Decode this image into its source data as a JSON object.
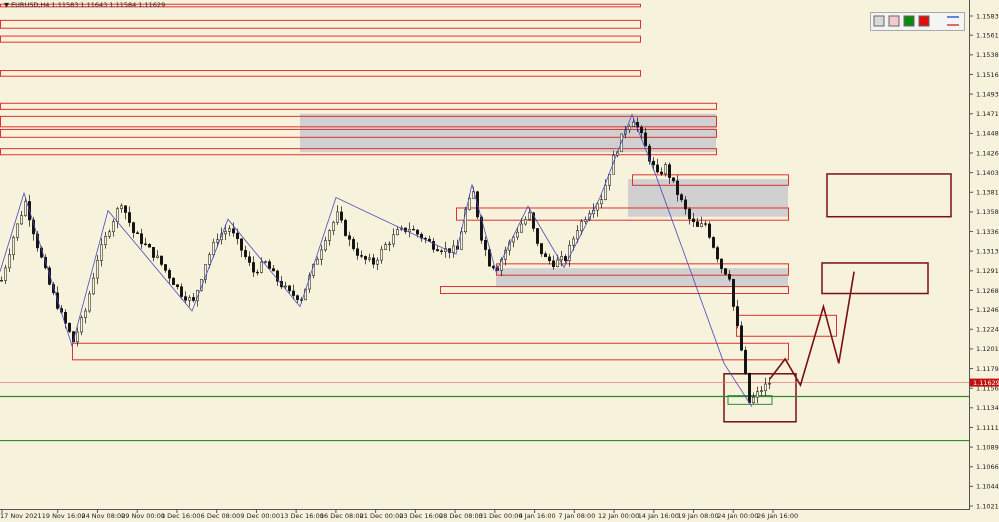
{
  "header": {
    "symbol_line": "▼ EURUSD,H4 1.11583 1.11643 1.11584 1.11629"
  },
  "toolbar": {
    "swatches": [
      {
        "name": "light-gray-swatch",
        "color": "#d9d9d9"
      },
      {
        "name": "pink-swatch",
        "color": "#f4c9d0"
      },
      {
        "name": "green-swatch",
        "color": "#0a8a0a"
      },
      {
        "name": "red-swatch",
        "color": "#e01010"
      }
    ]
  },
  "colors": {
    "background": "#f6f2dc",
    "candle": "#111111",
    "zone_red": "#e23030",
    "zone_dark": "#7a1010",
    "zone_fill": "#d0d0d0",
    "zigzag": "#4a4ab8",
    "green_line": "#2e8b2e",
    "price_line": "#e08080",
    "price_tag": "#c01010"
  },
  "chart_data": {
    "type": "candlestick",
    "symbol": "EURUSD",
    "timeframe": "H4",
    "ohlc": {
      "open": 1.11583,
      "high": 1.11643,
      "low": 1.11584,
      "close": 1.11629
    },
    "current_price_label": "1.11629",
    "y_ticks": [
      "1.15830",
      "1.15610",
      "1.15385",
      "1.15160",
      "1.14935",
      "1.14710",
      "1.14485",
      "1.14260",
      "1.14035",
      "1.13810",
      "1.13585",
      "1.13360",
      "1.13135",
      "1.12910",
      "1.12685",
      "1.12465",
      "1.12240",
      "1.12015",
      "1.11790",
      "1.11565",
      "1.11340",
      "1.11115",
      "1.10890",
      "1.10665",
      "1.10440",
      "1.10215"
    ],
    "x_ticks": [
      "17 Nov 2021",
      "19 Nov 16:00",
      "24 Nov 08:00",
      "29 Nov 00:00",
      "1 Dec 16:00",
      "6 Dec 08:00",
      "9 Dec 00:00",
      "13 Dec 16:00",
      "16 Dec 08:00",
      "21 Dec 00:00",
      "23 Dec 16:00",
      "28 Dec 08:00",
      "31 Dec 00:00",
      "4 Jan 16:00",
      "7 Jan 08:00",
      "12 Jan 00:00",
      "14 Jan 16:00",
      "19 Jan 08:00",
      "24 Jan 00:00",
      "26 Jan 16:00"
    ],
    "zigzag": [
      [
        0,
        1.129
      ],
      [
        6,
        1.138
      ],
      [
        18,
        1.1205
      ],
      [
        27,
        1.136
      ],
      [
        48,
        1.1245
      ],
      [
        57,
        1.135
      ],
      [
        75,
        1.125
      ],
      [
        84,
        1.1375
      ],
      [
        114,
        1.131
      ],
      [
        118,
        1.139
      ],
      [
        124,
        1.129
      ],
      [
        132,
        1.1365
      ],
      [
        141,
        1.1295
      ],
      [
        150,
        1.1375
      ],
      [
        158,
        1.147
      ],
      [
        164,
        1.14
      ],
      [
        181,
        1.1185
      ],
      [
        188,
        1.1135
      ]
    ],
    "close_path": [
      [
        0,
        1.128
      ],
      [
        3,
        1.133
      ],
      [
        6,
        1.137
      ],
      [
        9,
        1.132
      ],
      [
        12,
        1.1275
      ],
      [
        15,
        1.124
      ],
      [
        18,
        1.121
      ],
      [
        21,
        1.1245
      ],
      [
        24,
        1.1305
      ],
      [
        27,
        1.134
      ],
      [
        30,
        1.137
      ],
      [
        33,
        1.1335
      ],
      [
        36,
        1.132
      ],
      [
        39,
        1.1305
      ],
      [
        42,
        1.1285
      ],
      [
        45,
        1.1265
      ],
      [
        48,
        1.1255
      ],
      [
        51,
        1.13
      ],
      [
        54,
        1.133
      ],
      [
        57,
        1.134
      ],
      [
        60,
        1.1315
      ],
      [
        63,
        1.129
      ],
      [
        66,
        1.13
      ],
      [
        69,
        1.128
      ],
      [
        72,
        1.1265
      ],
      [
        75,
        1.126
      ],
      [
        78,
        1.1295
      ],
      [
        81,
        1.133
      ],
      [
        84,
        1.1355
      ],
      [
        87,
        1.1325
      ],
      [
        90,
        1.1305
      ],
      [
        93,
        1.13
      ],
      [
        96,
        1.132
      ],
      [
        99,
        1.1335
      ],
      [
        102,
        1.134
      ],
      [
        105,
        1.133
      ],
      [
        108,
        1.132
      ],
      [
        111,
        1.1315
      ],
      [
        114,
        1.1315
      ],
      [
        116,
        1.136
      ],
      [
        118,
        1.138
      ],
      [
        120,
        1.133
      ],
      [
        122,
        1.13
      ],
      [
        124,
        1.1295
      ],
      [
        126,
        1.1315
      ],
      [
        128,
        1.133
      ],
      [
        130,
        1.1345
      ],
      [
        132,
        1.1355
      ],
      [
        134,
        1.132
      ],
      [
        136,
        1.1305
      ],
      [
        138,
        1.13
      ],
      [
        141,
        1.1305
      ],
      [
        144,
        1.134
      ],
      [
        147,
        1.136
      ],
      [
        150,
        1.1375
      ],
      [
        153,
        1.142
      ],
      [
        156,
        1.1455
      ],
      [
        158,
        1.1465
      ],
      [
        160,
        1.1445
      ],
      [
        162,
        1.142
      ],
      [
        164,
        1.14
      ],
      [
        166,
        1.141
      ],
      [
        168,
        1.139
      ],
      [
        170,
        1.137
      ],
      [
        172,
        1.135
      ],
      [
        174,
        1.134
      ],
      [
        176,
        1.1345
      ],
      [
        178,
        1.132
      ],
      [
        180,
        1.1295
      ],
      [
        182,
        1.1285
      ],
      [
        183,
        1.125
      ],
      [
        185,
        1.12
      ],
      [
        187,
        1.114
      ],
      [
        189,
        1.115
      ],
      [
        190,
        1.1155
      ],
      [
        192,
        1.1163
      ]
    ],
    "zones": [
      {
        "type": "resistance",
        "y1": 1.15965,
        "y2": 1.15935,
        "x_end": 160
      },
      {
        "type": "resistance",
        "y1": 1.1578,
        "y2": 1.1569,
        "x_end": 160
      },
      {
        "type": "resistance",
        "y1": 1.156,
        "y2": 1.1553,
        "x_end": 160
      },
      {
        "type": "resistance",
        "y1": 1.15205,
        "y2": 1.1514,
        "x_end": 160
      },
      {
        "type": "resistance",
        "y1": 1.1483,
        "y2": 1.1476,
        "x_end": 179
      },
      {
        "type": "resistance",
        "y1": 1.1468,
        "y2": 1.1456,
        "x_end": 179
      },
      {
        "type": "resistance",
        "y1": 1.1453,
        "y2": 1.1444,
        "x_end": 179
      },
      {
        "type": "resistance",
        "y1": 1.1431,
        "y2": 1.1424,
        "x_end": 179
      },
      {
        "type": "resistance",
        "y1": 1.1401,
        "y2": 1.1389,
        "x_start": 158,
        "x_end": 197
      },
      {
        "type": "resistance",
        "y1": 1.1363,
        "y2": 1.1349,
        "x_start": 114,
        "x_end": 197
      },
      {
        "type": "resistance",
        "y1": 1.1299,
        "y2": 1.1286,
        "x_start": 124,
        "x_end": 197
      },
      {
        "type": "resistance",
        "y1": 1.1273,
        "y2": 1.1265,
        "x_start": 110,
        "x_end": 197
      },
      {
        "type": "resistance",
        "y1": 1.124,
        "y2": 1.1216,
        "x_start": 184,
        "x_end": 209
      },
      {
        "type": "support",
        "y1": 1.1208,
        "y2": 1.1189,
        "x_start": 18,
        "x_end": 197
      }
    ],
    "horizontal_lines": [
      1.1147,
      1.10965
    ],
    "current_price": 1.11629,
    "projection_boxes": [
      {
        "y1": 1.1402,
        "y2": 1.1353
      },
      {
        "y1": 1.13,
        "y2": 1.1265
      }
    ],
    "projection_path": [
      [
        201,
        1.1167
      ],
      [
        205,
        1.119
      ],
      [
        209,
        1.116
      ],
      [
        215,
        1.125
      ],
      [
        219,
        1.1185
      ],
      [
        223,
        1.129
      ]
    ]
  }
}
